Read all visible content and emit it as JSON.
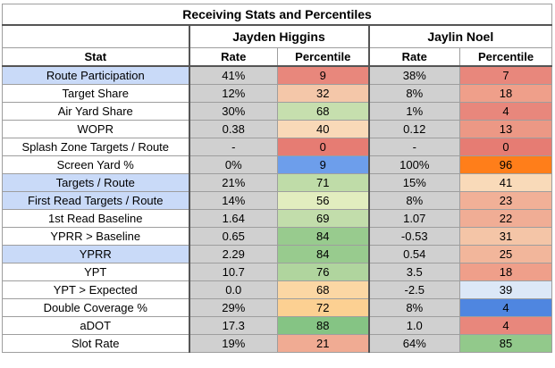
{
  "title": "Receiving Stats and Percentiles",
  "players": [
    "Jayden Higgins",
    "Jaylin Noel"
  ],
  "headers": {
    "stat": "Stat",
    "rate": "Rate",
    "percentile": "Percentile"
  },
  "rows": [
    {
      "stat": "Route Participation",
      "highlight": true,
      "p1_rate": "41%",
      "p1_pct": "9",
      "p1_color": "#e8877c",
      "p2_rate": "38%",
      "p2_pct": "7",
      "p2_color": "#e8877c"
    },
    {
      "stat": "Target Share",
      "highlight": false,
      "p1_rate": "12%",
      "p1_pct": "32",
      "p1_color": "#f4c7a9",
      "p2_rate": "8%",
      "p2_pct": "18",
      "p2_color": "#ef9f8a"
    },
    {
      "stat": "Air Yard Share",
      "highlight": false,
      "p1_rate": "30%",
      "p1_pct": "68",
      "p1_color": "#c6dfae",
      "p2_rate": "1%",
      "p2_pct": "4",
      "p2_color": "#e8877c"
    },
    {
      "stat": "WOPR",
      "highlight": false,
      "p1_rate": "0.38",
      "p1_pct": "40",
      "p1_color": "#f9d9b8",
      "p2_rate": "0.12",
      "p2_pct": "13",
      "p2_color": "#ec9885"
    },
    {
      "stat": "Splash Zone Targets / Route",
      "highlight": false,
      "p1_rate": "-",
      "p1_pct": "0",
      "p1_color": "#e67c73",
      "p2_rate": "-",
      "p2_pct": "0",
      "p2_color": "#e67c73"
    },
    {
      "stat": "Screen Yard %",
      "highlight": false,
      "p1_rate": "0%",
      "p1_pct": "9",
      "p1_color": "#6d9eeb",
      "p2_rate": "100%",
      "p2_pct": "96",
      "p2_color": "#ff7e1a"
    },
    {
      "stat": "Targets / Route",
      "highlight": true,
      "p1_rate": "21%",
      "p1_pct": "71",
      "p1_color": "#bfdca8",
      "p2_rate": "15%",
      "p2_pct": "41",
      "p2_color": "#f9dab9"
    },
    {
      "stat": "First Read Targets / Route",
      "highlight": true,
      "p1_rate": "14%",
      "p1_pct": "56",
      "p1_color": "#e2edbf",
      "p2_rate": "8%",
      "p2_pct": "23",
      "p2_color": "#f1b097"
    },
    {
      "stat": "1st Read Baseline",
      "highlight": false,
      "p1_rate": "1.64",
      "p1_pct": "69",
      "p1_color": "#c2ddab",
      "p2_rate": "1.07",
      "p2_pct": "22",
      "p2_color": "#f0ad95"
    },
    {
      "stat": "YPRR > Baseline",
      "highlight": false,
      "p1_rate": "0.65",
      "p1_pct": "84",
      "p1_color": "#98cb8e",
      "p2_rate": "-0.53",
      "p2_pct": "31",
      "p2_color": "#f4c5a7"
    },
    {
      "stat": "YPRR",
      "highlight": true,
      "p1_rate": "2.29",
      "p1_pct": "84",
      "p1_color": "#98cb8e",
      "p2_rate": "0.54",
      "p2_pct": "25",
      "p2_color": "#f2b69b"
    },
    {
      "stat": "YPT",
      "highlight": false,
      "p1_rate": "10.7",
      "p1_pct": "76",
      "p1_color": "#b0d59e",
      "p2_rate": "3.5",
      "p2_pct": "18",
      "p2_color": "#ef9f8a"
    },
    {
      "stat": "YPT > Expected",
      "highlight": false,
      "p1_rate": "0.0",
      "p1_pct": "68",
      "p1_color": "#fbd7a4",
      "p2_rate": "-2.5",
      "p2_pct": "39",
      "p2_color": "#dce8f7"
    },
    {
      "stat": "Double Coverage %",
      "highlight": false,
      "p1_rate": "29%",
      "p1_pct": "72",
      "p1_color": "#fcd092",
      "p2_rate": "8%",
      "p2_pct": "4",
      "p2_color": "#4f86e0"
    },
    {
      "stat": "aDOT",
      "highlight": false,
      "p1_rate": "17.3",
      "p1_pct": "88",
      "p1_color": "#85c484",
      "p2_rate": "1.0",
      "p2_pct": "4",
      "p2_color": "#e8877c"
    },
    {
      "stat": "Slot Rate",
      "highlight": false,
      "p1_rate": "19%",
      "p1_pct": "21",
      "p1_color": "#f0ab93",
      "p2_rate": "64%",
      "p2_pct": "85",
      "p2_color": "#92c98b"
    }
  ]
}
